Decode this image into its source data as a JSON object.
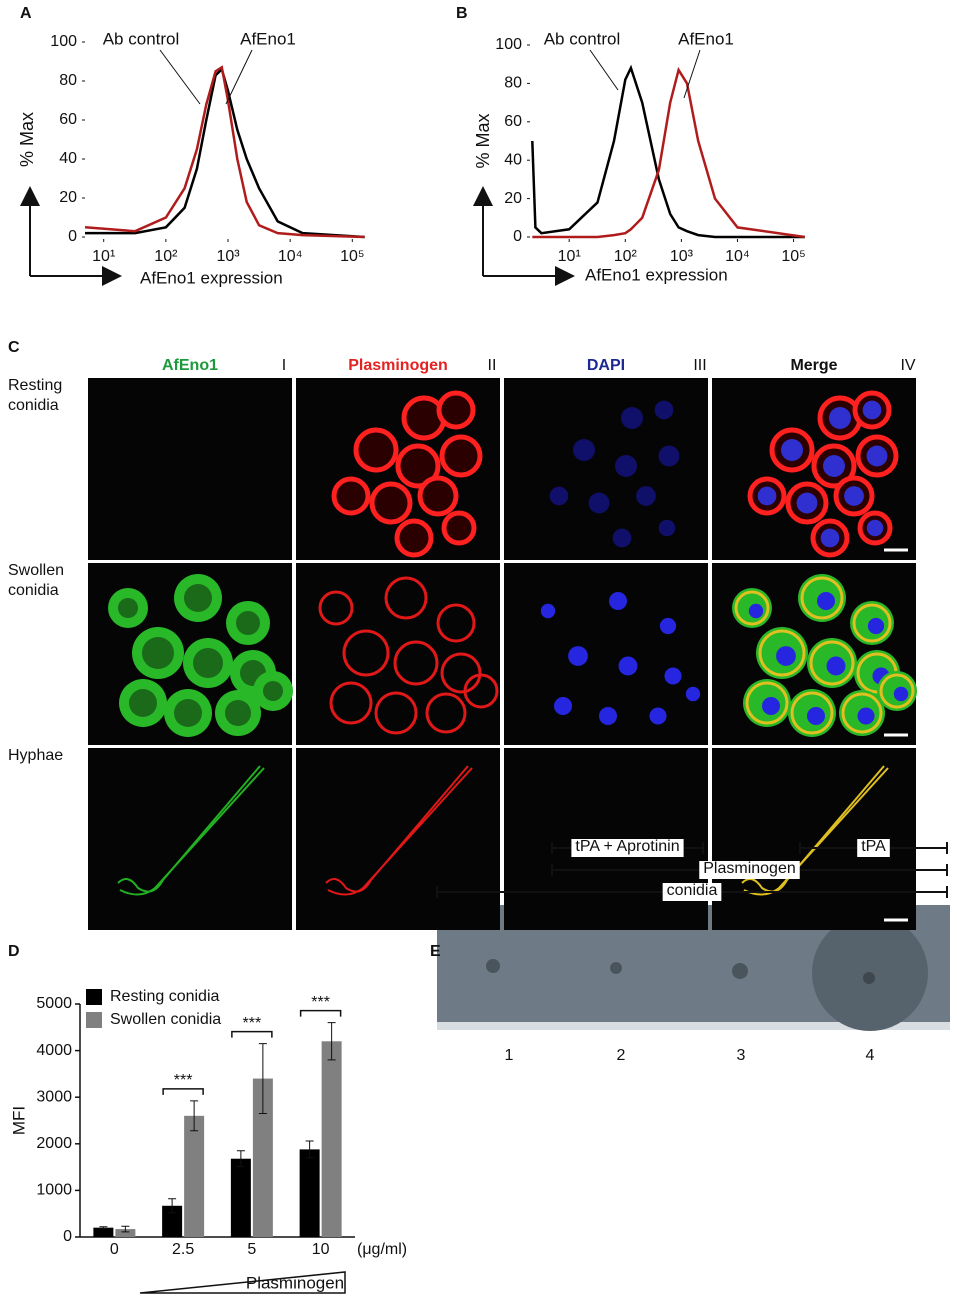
{
  "chart_data": [
    {
      "type": "line",
      "panel_label": "A",
      "y_label": "% Max",
      "x_label": "AfEno1 expression",
      "log_x": true,
      "xlim": [
        5,
        160000
      ],
      "xticks": [
        {
          "value": 10,
          "label": "10¹"
        },
        {
          "value": 100,
          "label": "10²"
        },
        {
          "value": 1000,
          "label": "10³"
        },
        {
          "value": 10000,
          "label": "10⁴"
        },
        {
          "value": 100000,
          "label": "10⁵"
        }
      ],
      "ylim": [
        0,
        100
      ],
      "yticks": [
        0,
        20,
        40,
        60,
        80,
        100
      ],
      "x": [
        5,
        32,
        100,
        200,
        316,
        447,
        631,
        794,
        1000,
        1413,
        1995,
        3162,
        6310,
        15850,
        158500
      ],
      "series": [
        {
          "name": "Ab control",
          "color": "#000000",
          "values": [
            2,
            2,
            5,
            15,
            35,
            60,
            83,
            86,
            75,
            55,
            40,
            25,
            8,
            2,
            0
          ]
        },
        {
          "name": "AfEno1",
          "color": "#b01c1c",
          "values": [
            5,
            3,
            10,
            25,
            45,
            68,
            85,
            87,
            70,
            40,
            18,
            6,
            2,
            1,
            0
          ]
        }
      ]
    },
    {
      "type": "line",
      "panel_label": "B",
      "y_label": "% Max",
      "x_label": "AfEno1 expression",
      "log_x": true,
      "xlim": [
        2,
        160000
      ],
      "xticks": [
        {
          "value": 10,
          "label": "10¹"
        },
        {
          "value": 100,
          "label": "10²"
        },
        {
          "value": 1000,
          "label": "10³"
        },
        {
          "value": 10000,
          "label": "10⁴"
        },
        {
          "value": 100000,
          "label": "10⁵"
        }
      ],
      "ylim": [
        0,
        100
      ],
      "yticks": [
        0,
        20,
        40,
        60,
        80,
        100
      ],
      "x": [
        2.2,
        2.5,
        3.2,
        10,
        32,
        63,
        100,
        126,
        200,
        398,
        631,
        891,
        1259,
        1995,
        3981,
        10000,
        158500
      ],
      "series": [
        {
          "name": "Ab control",
          "color": "#000000",
          "values": [
            50,
            5,
            2,
            4,
            18,
            50,
            82,
            88,
            70,
            30,
            12,
            5,
            3,
            1,
            0,
            0,
            0
          ]
        },
        {
          "name": "AfEno1",
          "color": "#b01c1c",
          "values": [
            0,
            0,
            0,
            0,
            0,
            1,
            2,
            4,
            10,
            35,
            70,
            87,
            80,
            50,
            20,
            5,
            0
          ]
        }
      ]
    },
    {
      "type": "bar",
      "panel_label": "D",
      "y_label": "MFI",
      "x_unit": "(μg/ml)",
      "x_label": "Plasminogen",
      "categories": [
        "0",
        "2.5",
        "5",
        "10"
      ],
      "ylim": [
        0,
        5000
      ],
      "yticks": [
        0,
        1000,
        2000,
        3000,
        4000,
        5000
      ],
      "series": [
        {
          "name": "Resting conidia",
          "color": "#000000",
          "values": [
            200,
            670,
            1680,
            1880
          ],
          "errors": [
            20,
            150,
            170,
            180
          ]
        },
        {
          "name": "Swollen conidia",
          "color": "#808080",
          "values": [
            170,
            2600,
            3400,
            4200
          ],
          "errors": [
            60,
            320,
            750,
            400
          ]
        }
      ],
      "significance": [
        "***",
        "***",
        "***"
      ]
    }
  ],
  "panel_c": {
    "label": "C",
    "columns": [
      {
        "name": "AfEno1",
        "numeral": "I"
      },
      {
        "name": "Plasminogen",
        "numeral": "II"
      },
      {
        "name": "DAPI",
        "numeral": "III"
      },
      {
        "name": "Merge",
        "numeral": "IV"
      }
    ],
    "rows": [
      "Resting conidia",
      "Swollen conidia",
      "Hyphae"
    ]
  },
  "panel_e": {
    "label": "E",
    "brackets": [
      "tPA + Aprotinin",
      "tPA",
      "Plasminogen",
      "conidia"
    ],
    "lanes": [
      "1",
      "2",
      "3",
      "4"
    ]
  }
}
